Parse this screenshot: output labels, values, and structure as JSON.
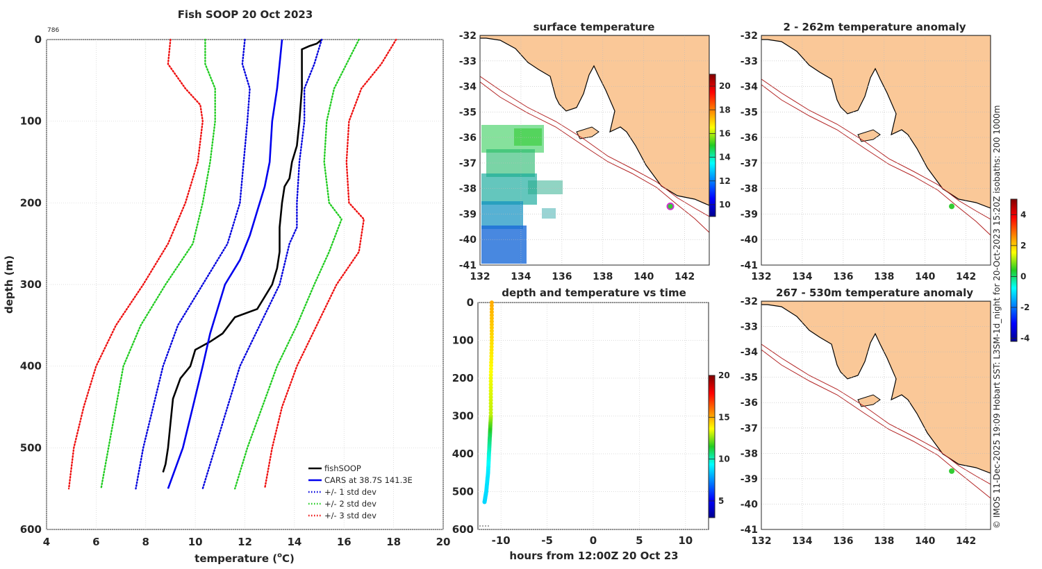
{
  "profile": {
    "title": "Fish SOOP 20 Oct 2023",
    "id_label": "786",
    "xlabel_main": "temperature (",
    "xlabel_sup": "o",
    "xlabel_tail": "C)",
    "ylabel": "depth (m)",
    "xticks": [
      "4",
      "6",
      "8",
      "10",
      "12",
      "14",
      "16",
      "18",
      "20"
    ],
    "yticks": [
      "0",
      "100",
      "200",
      "300",
      "400",
      "500",
      "600"
    ],
    "legend": [
      "fishSOOP",
      "CARS at 38.7S 141.3E",
      "+/- 1 std dev",
      "+/- 2 std dev",
      "+/- 3 std dev"
    ]
  },
  "maps": {
    "surface_title": "surface temperature",
    "anom1_title": "2 - 262m temperature anomaly",
    "anom2_title": "267 - 530m temperature anomaly",
    "lat_ticks": [
      "-32",
      "-33",
      "-34",
      "-35",
      "-36",
      "-37",
      "-38",
      "-39",
      "-40",
      "-41"
    ],
    "lon_ticks": [
      "132",
      "134",
      "136",
      "138",
      "140",
      "142"
    ],
    "sst_cbar_ticks": [
      "10",
      "12",
      "14",
      "16",
      "18",
      "20"
    ],
    "anom_cbar_ticks": [
      "-4",
      "-2",
      "0",
      "2",
      "4"
    ]
  },
  "timeplot": {
    "title": "depth and temperature vs time",
    "xlabel": "hours from 12:00Z 20 Oct 23",
    "xticks": [
      "-10",
      "-5",
      "0",
      "5",
      "10"
    ],
    "yticks": [
      "0",
      "100",
      "200",
      "300",
      "400",
      "500",
      "600"
    ],
    "cbar_ticks": [
      "5",
      "10",
      "15",
      "20"
    ]
  },
  "footer": "© IMOS 11-Dec-2025 19:09 Hobart SST: L3SM-1d_night for 20-Oct-2023 15:20Z isobaths: 200  1000m",
  "colors": {
    "fish": "#000000",
    "cars": "#0000ee",
    "sd1": "#0000dd",
    "sd2": "#22cc22",
    "sd3": "#ee1111",
    "land": "#fac898",
    "isobath": "#b22222",
    "point_sst": "#cc33cc",
    "point_anom": "#33cc33"
  },
  "chart_data": [
    {
      "type": "line",
      "title": "Fish SOOP 20 Oct 2023",
      "xlabel": "temperature (oC)",
      "ylabel": "depth (m)",
      "xlim": [
        4,
        20
      ],
      "ylim": [
        600,
        0
      ],
      "series": [
        {
          "name": "fishSOOP",
          "style": "solid",
          "points": [
            [
              15.1,
              0
            ],
            [
              14.9,
              5
            ],
            [
              14.6,
              8
            ],
            [
              14.3,
              12
            ],
            [
              14.3,
              30
            ],
            [
              14.3,
              60
            ],
            [
              14.2,
              100
            ],
            [
              14.1,
              130
            ],
            [
              13.9,
              150
            ],
            [
              13.8,
              170
            ],
            [
              13.6,
              180
            ],
            [
              13.5,
              200
            ],
            [
              13.4,
              230
            ],
            [
              13.4,
              260
            ],
            [
              13.3,
              280
            ],
            [
              13.1,
              300
            ],
            [
              12.7,
              320
            ],
            [
              12.5,
              330
            ],
            [
              11.6,
              340
            ],
            [
              11.1,
              360
            ],
            [
              10.6,
              370
            ],
            [
              10.0,
              380
            ],
            [
              9.8,
              400
            ],
            [
              9.4,
              415
            ],
            [
              9.1,
              440
            ],
            [
              9.0,
              470
            ],
            [
              8.9,
              500
            ],
            [
              8.8,
              520
            ],
            [
              8.7,
              530
            ]
          ]
        },
        {
          "name": "CARS at 38.7S 141.3E",
          "style": "solid",
          "points": [
            [
              13.5,
              0
            ],
            [
              13.4,
              30
            ],
            [
              13.3,
              60
            ],
            [
              13.1,
              100
            ],
            [
              13.0,
              150
            ],
            [
              12.8,
              180
            ],
            [
              12.5,
              210
            ],
            [
              12.2,
              240
            ],
            [
              11.8,
              270
            ],
            [
              11.2,
              300
            ],
            [
              10.9,
              330
            ],
            [
              10.6,
              360
            ],
            [
              10.3,
              400
            ],
            [
              9.9,
              450
            ],
            [
              9.5,
              500
            ],
            [
              8.9,
              550
            ]
          ]
        },
        {
          "name": "+/- 1 std dev (low)",
          "style": "dotted",
          "points": [
            [
              12.0,
              0
            ],
            [
              11.9,
              30
            ],
            [
              12.2,
              60
            ],
            [
              12.1,
              100
            ],
            [
              11.8,
              200
            ],
            [
              11.3,
              250
            ],
            [
              10.3,
              300
            ],
            [
              9.3,
              350
            ],
            [
              8.7,
              400
            ],
            [
              8.3,
              450
            ],
            [
              7.9,
              500
            ],
            [
              7.6,
              550
            ]
          ]
        },
        {
          "name": "+/- 1 std dev (high)",
          "style": "dotted",
          "points": [
            [
              15.1,
              0
            ],
            [
              14.8,
              30
            ],
            [
              14.4,
              60
            ],
            [
              14.4,
              100
            ],
            [
              14.2,
              150
            ],
            [
              14.1,
              200
            ],
            [
              14.1,
              230
            ],
            [
              13.8,
              250
            ],
            [
              13.4,
              300
            ],
            [
              12.6,
              350
            ],
            [
              11.8,
              400
            ],
            [
              11.3,
              450
            ],
            [
              10.8,
              500
            ],
            [
              10.3,
              550
            ]
          ]
        },
        {
          "name": "+/- 2 std dev (low)",
          "style": "dotted",
          "points": [
            [
              10.4,
              0
            ],
            [
              10.4,
              30
            ],
            [
              10.8,
              60
            ],
            [
              10.8,
              100
            ],
            [
              10.6,
              150
            ],
            [
              10.3,
              200
            ],
            [
              9.9,
              250
            ],
            [
              8.8,
              300
            ],
            [
              7.8,
              350
            ],
            [
              7.1,
              400
            ],
            [
              6.8,
              450
            ],
            [
              6.5,
              500
            ],
            [
              6.2,
              550
            ]
          ]
        },
        {
          "name": "+/- 2 std dev (high)",
          "style": "dotted",
          "points": [
            [
              16.6,
              0
            ],
            [
              16.1,
              30
            ],
            [
              15.6,
              60
            ],
            [
              15.3,
              100
            ],
            [
              15.2,
              150
            ],
            [
              15.4,
              200
            ],
            [
              15.9,
              220
            ],
            [
              15.4,
              260
            ],
            [
              14.8,
              300
            ],
            [
              14.1,
              350
            ],
            [
              13.3,
              400
            ],
            [
              12.7,
              450
            ],
            [
              12.1,
              500
            ],
            [
              11.6,
              550
            ]
          ]
        },
        {
          "name": "+/- 3 std dev (low)",
          "style": "dotted",
          "points": [
            [
              9.0,
              0
            ],
            [
              8.9,
              30
            ],
            [
              9.6,
              60
            ],
            [
              10.2,
              80
            ],
            [
              10.3,
              100
            ],
            [
              10.1,
              150
            ],
            [
              9.6,
              200
            ],
            [
              8.9,
              250
            ],
            [
              7.9,
              300
            ],
            [
              6.8,
              350
            ],
            [
              6.0,
              400
            ],
            [
              5.5,
              450
            ],
            [
              5.1,
              500
            ],
            [
              4.9,
              550
            ]
          ]
        },
        {
          "name": "+/- 3 std dev (high)",
          "style": "dotted",
          "points": [
            [
              18.1,
              0
            ],
            [
              17.5,
              30
            ],
            [
              16.7,
              60
            ],
            [
              16.2,
              100
            ],
            [
              16.1,
              150
            ],
            [
              16.2,
              200
            ],
            [
              16.8,
              220
            ],
            [
              16.6,
              260
            ],
            [
              15.7,
              300
            ],
            [
              14.9,
              350
            ],
            [
              14.1,
              400
            ],
            [
              13.5,
              450
            ],
            [
              13.1,
              500
            ],
            [
              12.8,
              550
            ]
          ]
        }
      ],
      "legend": [
        "fishSOOP",
        "CARS at 38.7S 141.3E",
        "+/- 1 std dev",
        "+/- 2 std dev",
        "+/- 3 std dev"
      ]
    },
    {
      "type": "heatmap",
      "title": "surface temperature",
      "xlim": [
        132,
        143.2
      ],
      "ylim": [
        -41,
        -32
      ],
      "colorbar": {
        "range": [
          9,
          21
        ],
        "ticks": [
          10,
          12,
          14,
          16,
          18,
          20
        ]
      },
      "station": [
        141.3,
        -38.7
      ]
    },
    {
      "type": "scatter",
      "title": "depth and temperature vs time",
      "xlabel": "hours from 12:00Z 20 Oct 23",
      "xlim": [
        -12.5,
        12.5
      ],
      "ylim": [
        600,
        0
      ],
      "colorbar": {
        "range": [
          3,
          20
        ],
        "ticks": [
          5,
          10,
          15,
          20
        ]
      },
      "points": [
        [
          -11.0,
          0,
          15.0
        ],
        [
          -11.0,
          100,
          14.2
        ],
        [
          -11.1,
          200,
          13.5
        ],
        [
          -11.1,
          300,
          13.0
        ],
        [
          -11.2,
          350,
          11.1
        ],
        [
          -11.3,
          400,
          9.8
        ],
        [
          -11.4,
          450,
          9.0
        ],
        [
          -11.6,
          500,
          8.8
        ],
        [
          -11.8,
          530,
          8.7
        ]
      ]
    },
    {
      "type": "heatmap",
      "title": "2 - 262m temperature anomaly",
      "xlim": [
        132,
        143.2
      ],
      "ylim": [
        -41,
        -32
      ],
      "colorbar": {
        "range": [
          -4.2,
          5
        ],
        "ticks": [
          -4,
          -2,
          0,
          2,
          4
        ]
      },
      "station": [
        141.3,
        -38.7
      ]
    },
    {
      "type": "heatmap",
      "title": "267 - 530m temperature anomaly",
      "xlim": [
        132,
        143.2
      ],
      "ylim": [
        -41,
        -32
      ],
      "colorbar": {
        "range": [
          -4.2,
          5
        ],
        "ticks": [
          -4,
          -2,
          0,
          2,
          4
        ]
      },
      "station": [
        141.3,
        -38.7
      ]
    }
  ]
}
